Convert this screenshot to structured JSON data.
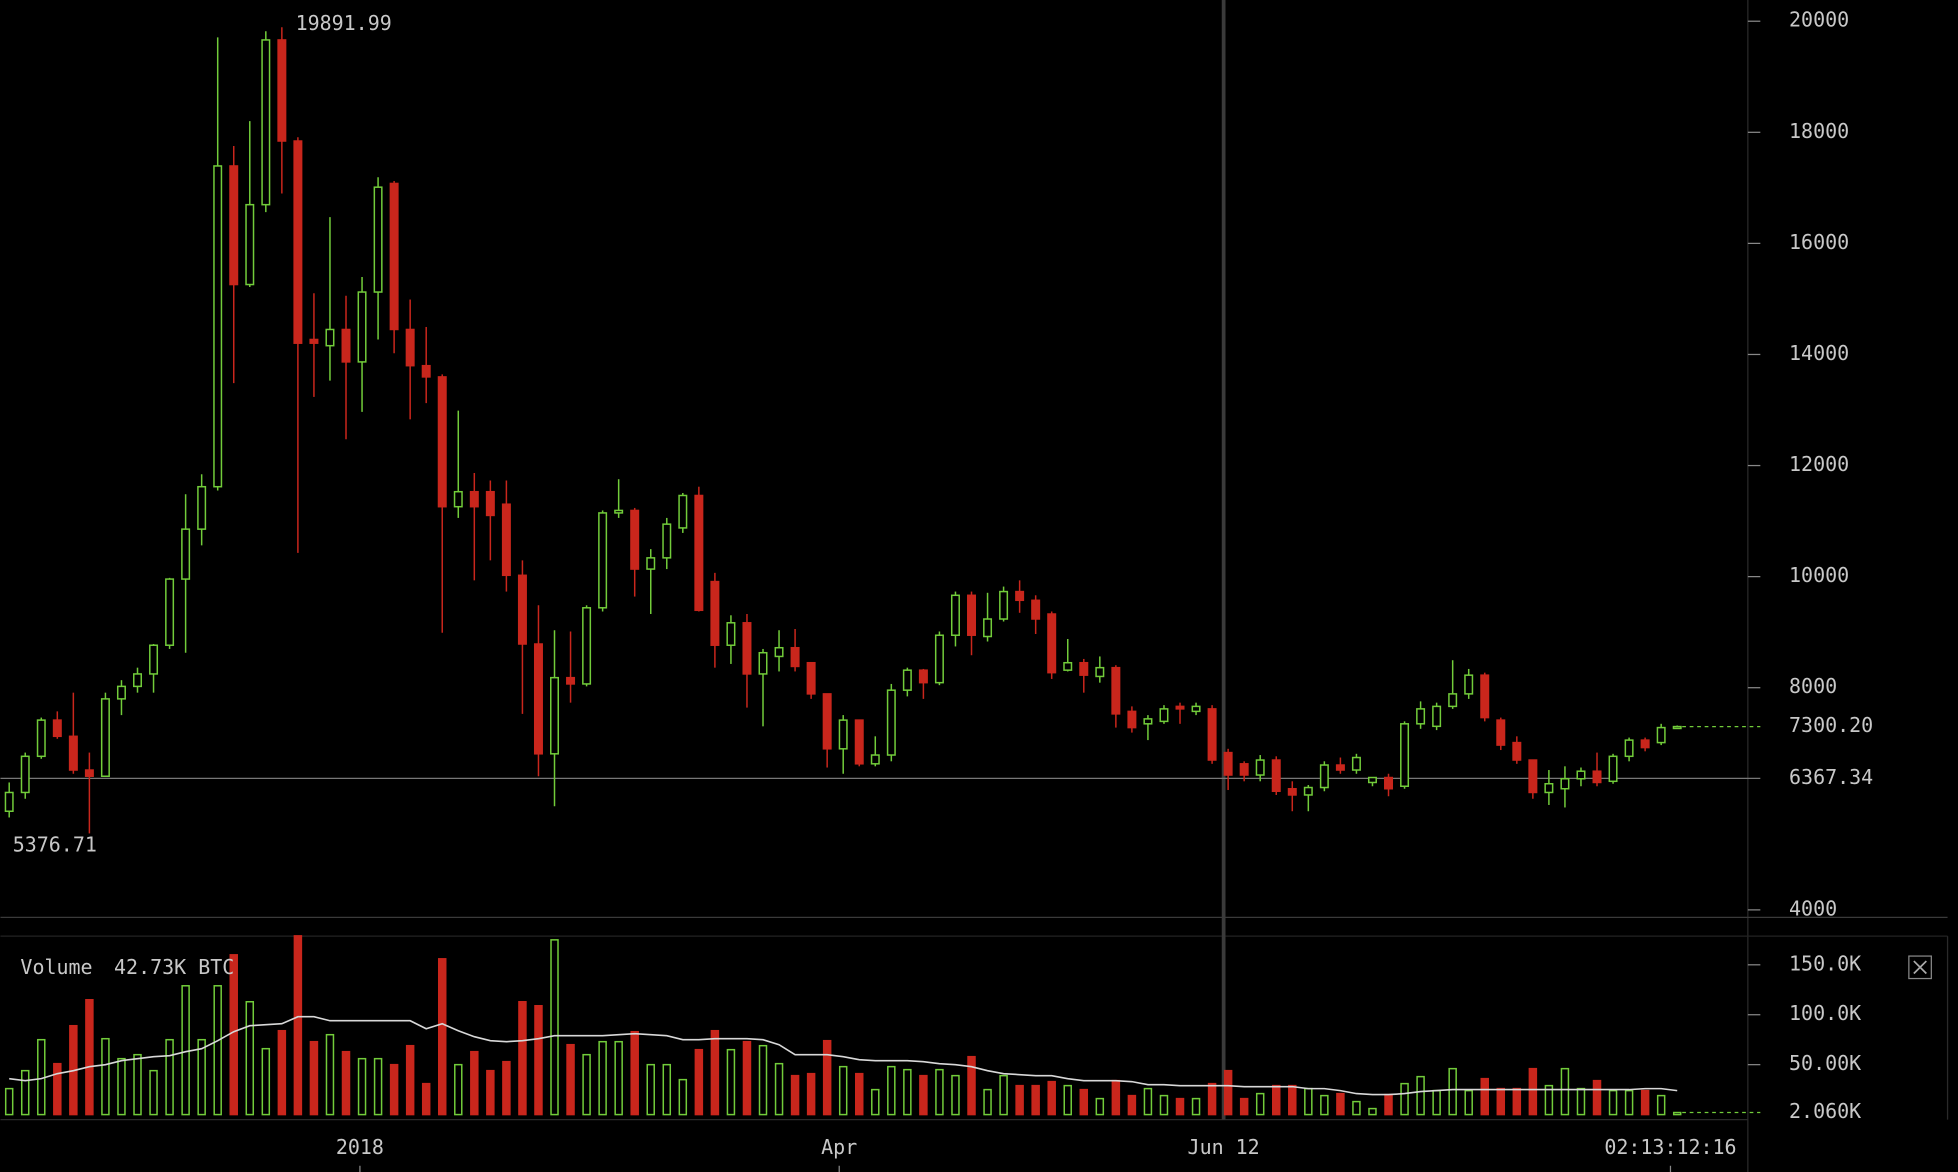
{
  "chart_data": {
    "type": "candlestick",
    "open": [
      5776,
      6114,
      6765,
      7417,
      7125,
      6518,
      6406,
      7799,
      8024,
      8248,
      8765,
      9956,
      10855,
      11619,
      17394,
      15259,
      16697,
      19663,
      17843,
      14270,
      14158,
      14450,
      13866,
      15124,
      17079,
      14450,
      13798,
      13596,
      11259,
      11529,
      11529,
      11304,
      10024,
      8787,
      6810,
      8181,
      8068,
      9439,
      11147,
      11192,
      10136,
      10338,
      10877,
      11461,
      9911,
      8765,
      9169,
      8248,
      8563,
      8720,
      8450,
      7889,
      6900,
      7417,
      6630,
      6788,
      7956,
      8316,
      8091,
      8945,
      9664,
      8922,
      9237,
      9731,
      9574,
      9327,
      8316,
      8450,
      8203,
      8361,
      7574,
      7350,
      7394,
      7664,
      7574,
      7619,
      6832,
      6630,
      6428,
      6698,
      6181,
      6069,
      6203,
      6608,
      6518,
      6294,
      6383,
      6226,
      7350,
      7305,
      7664,
      7889,
      8226,
      7417,
      7012,
      6698,
      6114,
      6181,
      6361,
      6497,
      6315,
      6765,
      7057,
      7012,
      7282
    ],
    "high": [
      6294,
      6832,
      7462,
      7574,
      7911,
      6832,
      7911,
      8136,
      8361,
      8787,
      9978,
      11484,
      11843,
      19708,
      17753,
      18202,
      19820,
      19891.99,
      17910,
      15102,
      16472,
      15057,
      15394,
      17191,
      17124,
      14989,
      14495,
      13641,
      12989,
      11866,
      11731,
      11731,
      10293,
      9484,
      9035,
      9012,
      9484,
      11192,
      11754,
      11237,
      10495,
      11057,
      11506,
      11619,
      10068,
      9304,
      9327,
      8698,
      9035,
      9057,
      8450,
      7889,
      7507,
      7417,
      7125,
      8068,
      8361,
      8338,
      9012,
      9731,
      9731,
      9709,
      9821,
      9933,
      9664,
      9372,
      8877,
      8518,
      8563,
      8405,
      7664,
      7507,
      7686,
      7731,
      7731,
      7686,
      6900,
      6675,
      6788,
      6765,
      6315,
      6248,
      6675,
      6743,
      6810,
      6383,
      6451,
      7394,
      7754,
      7731,
      8495,
      8338,
      8271,
      7462,
      7125,
      6698,
      6518,
      6585,
      6563,
      6832,
      6810,
      7102,
      7102,
      7350,
      7320
    ],
    "low": [
      5664,
      6001,
      6720,
      7080,
      6451,
      5376.71,
      6451,
      7507,
      7911,
      7911,
      8698,
      8630,
      10563,
      11551,
      13484,
      15214,
      16562,
      16899,
      10428,
      13236,
      13529,
      12473,
      12967,
      14270,
      14023,
      12832,
      13124,
      8990,
      11057,
      9933,
      10293,
      9731,
      7529,
      6406,
      5866,
      7731,
      8024,
      9372,
      11057,
      9641,
      9327,
      10136,
      10787,
      9372,
      8361,
      8428,
      7642,
      7305,
      8293,
      8293,
      7799,
      6563,
      6451,
      6585,
      6585,
      6675,
      7844,
      7799,
      8046,
      8743,
      8585,
      8832,
      9192,
      9349,
      8967,
      8158,
      8293,
      7911,
      8091,
      7282,
      7192,
      7057,
      7350,
      7350,
      7507,
      6630,
      6158,
      6315,
      6315,
      6069,
      5776,
      5776,
      6136,
      6451,
      6451,
      6226,
      6046,
      6181,
      7260,
      7237,
      7619,
      7799,
      7394,
      6878,
      6630,
      6001,
      5889,
      5844,
      6226,
      6226,
      6271,
      6675,
      6855,
      6967,
      7270
    ],
    "close": [
      6114,
      6765,
      7417,
      7125,
      6518,
      6406,
      7799,
      8024,
      8248,
      8765,
      9956,
      10855,
      11619,
      17394,
      15259,
      16697,
      19663,
      17843,
      14203,
      14203,
      14450,
      13866,
      15124,
      17012,
      14450,
      13798,
      13596,
      11259,
      11529,
      11259,
      11102,
      10024,
      8787,
      6810,
      8181,
      8068,
      9439,
      11147,
      11192,
      10136,
      10338,
      10945,
      11461,
      9394,
      8765,
      9169,
      8248,
      8630,
      8720,
      8383,
      7889,
      6900,
      7417,
      6630,
      6788,
      7956,
      8316,
      8091,
      8945,
      9664,
      8945,
      9237,
      9731,
      9574,
      9237,
      8271,
      8450,
      8226,
      8361,
      7529,
      7282,
      7439,
      7619,
      7619,
      7664,
      6698,
      6428,
      6428,
      6698,
      6136,
      6069,
      6203,
      6608,
      6518,
      6743,
      6383,
      6181,
      7350,
      7619,
      7664,
      7889,
      8226,
      7462,
      6967,
      6698,
      6114,
      6271,
      6361,
      6497,
      6294,
      6765,
      7057,
      6922,
      7282,
      7300.2
    ],
    "volume": [
      26000,
      44000,
      75000,
      51000,
      89000,
      115000,
      76000,
      56000,
      60000,
      44000,
      75000,
      129000,
      75000,
      129000,
      160000,
      113000,
      66000,
      84000,
      179000,
      73000,
      80000,
      63000,
      56000,
      56000,
      50000,
      69000,
      31000,
      156000,
      50000,
      63000,
      44000,
      53000,
      113000,
      109000,
      175000,
      70000,
      60000,
      73000,
      73000,
      83000,
      50000,
      50000,
      35000,
      65000,
      84000,
      65000,
      73000,
      69000,
      51000,
      39000,
      41000,
      74000,
      48000,
      41000,
      25000,
      48000,
      45000,
      39000,
      45000,
      39000,
      58000,
      25000,
      39000,
      29000,
      29000,
      33000,
      29000,
      25000,
      16000,
      34000,
      19000,
      26000,
      19000,
      16000,
      16000,
      31000,
      44000,
      16000,
      21000,
      29000,
      29000,
      26000,
      19000,
      21000,
      13000,
      6000,
      20000,
      31000,
      38000,
      24000,
      46000,
      24000,
      36000,
      26000,
      26000,
      46000,
      29000,
      46000,
      26000,
      34000,
      24000,
      24000,
      24000,
      19000,
      2060
    ],
    "volume_ma": [
      36000,
      34000,
      36000,
      41000,
      44000,
      48000,
      50000,
      54000,
      56000,
      58000,
      59000,
      63000,
      66000,
      74000,
      83000,
      89000,
      90000,
      91000,
      98000,
      98000,
      94000,
      94000,
      94000,
      94000,
      94000,
      94000,
      86000,
      91000,
      84000,
      78000,
      74000,
      73000,
      74000,
      76000,
      79000,
      79000,
      79000,
      79000,
      80000,
      81000,
      80000,
      79000,
      75000,
      75000,
      76000,
      76000,
      76000,
      75000,
      70000,
      60000,
      60000,
      60000,
      58000,
      55000,
      54000,
      54000,
      54000,
      53000,
      51000,
      50000,
      48000,
      44000,
      41000,
      40000,
      39000,
      39000,
      36000,
      34000,
      34000,
      34000,
      33000,
      30000,
      30000,
      29000,
      29000,
      29000,
      29000,
      28000,
      28000,
      28000,
      28000,
      26000,
      26000,
      24000,
      21000,
      20000,
      20000,
      21000,
      23000,
      24000,
      25000,
      25000,
      25000,
      25000,
      25000,
      25000,
      25000,
      25000,
      25000,
      25000,
      25000,
      25000,
      26000,
      26000,
      24000
    ],
    "up_color": "#72cc3a",
    "down_color": "#c9261c",
    "ma_color": "#d8d8d8",
    "ylim": [
      3865,
      20382
    ],
    "yticks": [
      4000,
      8000,
      10000,
      12000,
      14000,
      16000,
      18000,
      20000
    ],
    "last_price": {
      "value": 7300.2,
      "label": "7300.20"
    },
    "crosshair_price": 6367.34,
    "volume_ylim": [
      0,
      178750
    ],
    "volume_yticks": [
      {
        "value": 50000,
        "label": "50.00K"
      },
      {
        "value": 100000,
        "label": "100.0K"
      },
      {
        "value": 150000,
        "label": "150.0K"
      }
    ],
    "last_volume": {
      "value": 2060,
      "label": "2.060K"
    },
    "volume_title": "Volume",
    "volume_value": "42.73K BTC",
    "x_labels": [
      "2018",
      "Apr",
      "Jun 12"
    ],
    "countdown": "02:13:12:16"
  }
}
